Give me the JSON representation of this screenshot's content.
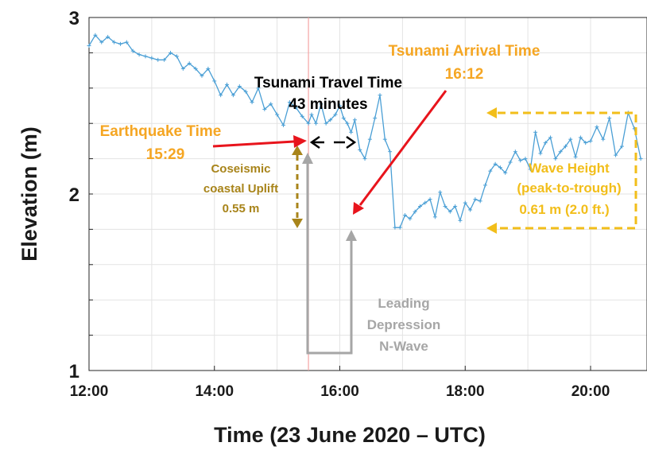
{
  "chart_data": {
    "type": "line",
    "title": "",
    "xlabel": "Time (23 June 2020 – UTC)",
    "ylabel": "Elevation (m)",
    "x_unit": "hours UTC",
    "xlim": [
      12.0,
      20.9
    ],
    "ylim": [
      1.0,
      3.0
    ],
    "grid": true,
    "x_ticks": [
      {
        "value": 12,
        "label": "12:00"
      },
      {
        "value": 14,
        "label": "14:00"
      },
      {
        "value": 16,
        "label": "16:00"
      },
      {
        "value": 18,
        "label": "18:00"
      },
      {
        "value": 20,
        "label": "20:00"
      }
    ],
    "y_ticks": [
      {
        "value": 1.0,
        "label": "1"
      },
      {
        "value": 1.2,
        "label": ""
      },
      {
        "value": 1.4,
        "label": ""
      },
      {
        "value": 1.6,
        "label": ""
      },
      {
        "value": 1.8,
        "label": ""
      },
      {
        "value": 2.0,
        "label": "2"
      },
      {
        "value": 2.2,
        "label": ""
      },
      {
        "value": 2.4,
        "label": ""
      },
      {
        "value": 2.6,
        "label": ""
      },
      {
        "value": 2.8,
        "label": ""
      },
      {
        "value": 3.0,
        "label": "3"
      }
    ],
    "series": [
      {
        "color": "#4a9fd5",
        "marker": "plus",
        "points": [
          [
            12.0,
            2.84
          ],
          [
            12.1,
            2.9
          ],
          [
            12.2,
            2.86
          ],
          [
            12.3,
            2.89
          ],
          [
            12.4,
            2.86
          ],
          [
            12.5,
            2.85
          ],
          [
            12.6,
            2.86
          ],
          [
            12.7,
            2.81
          ],
          [
            12.8,
            2.79
          ],
          [
            12.9,
            2.78
          ],
          [
            13.0,
            2.77
          ],
          [
            13.1,
            2.76
          ],
          [
            13.2,
            2.76
          ],
          [
            13.3,
            2.8
          ],
          [
            13.4,
            2.78
          ],
          [
            13.5,
            2.71
          ],
          [
            13.6,
            2.74
          ],
          [
            13.7,
            2.71
          ],
          [
            13.8,
            2.67
          ],
          [
            13.9,
            2.71
          ],
          [
            14.0,
            2.64
          ],
          [
            14.1,
            2.56
          ],
          [
            14.2,
            2.62
          ],
          [
            14.3,
            2.56
          ],
          [
            14.4,
            2.61
          ],
          [
            14.5,
            2.58
          ],
          [
            14.6,
            2.52
          ],
          [
            14.7,
            2.6
          ],
          [
            14.8,
            2.48
          ],
          [
            14.9,
            2.51
          ],
          [
            15.0,
            2.45
          ],
          [
            15.1,
            2.39
          ],
          [
            15.2,
            2.52
          ],
          [
            15.3,
            2.49
          ],
          [
            15.4,
            2.44
          ],
          [
            15.5,
            2.4
          ],
          [
            15.55,
            2.45
          ],
          [
            15.62,
            2.4
          ],
          [
            15.7,
            2.51
          ],
          [
            15.78,
            2.4
          ],
          [
            15.85,
            2.42
          ],
          [
            15.93,
            2.45
          ],
          [
            16.0,
            2.5
          ],
          [
            16.06,
            2.43
          ],
          [
            16.12,
            2.4
          ],
          [
            16.18,
            2.35
          ],
          [
            16.24,
            2.42
          ],
          [
            16.32,
            2.25
          ],
          [
            16.4,
            2.2
          ],
          [
            16.48,
            2.31
          ],
          [
            16.56,
            2.43
          ],
          [
            16.64,
            2.56
          ],
          [
            16.72,
            2.31
          ],
          [
            16.8,
            2.24
          ],
          [
            16.88,
            1.81
          ],
          [
            16.96,
            1.81
          ],
          [
            17.04,
            1.88
          ],
          [
            17.12,
            1.86
          ],
          [
            17.2,
            1.9
          ],
          [
            17.28,
            1.93
          ],
          [
            17.36,
            1.95
          ],
          [
            17.44,
            1.97
          ],
          [
            17.52,
            1.87
          ],
          [
            17.6,
            2.01
          ],
          [
            17.68,
            1.93
          ],
          [
            17.76,
            1.9
          ],
          [
            17.84,
            1.93
          ],
          [
            17.92,
            1.85
          ],
          [
            18.0,
            1.95
          ],
          [
            18.08,
            1.91
          ],
          [
            18.16,
            1.97
          ],
          [
            18.24,
            1.96
          ],
          [
            18.32,
            2.05
          ],
          [
            18.4,
            2.13
          ],
          [
            18.48,
            2.17
          ],
          [
            18.56,
            2.15
          ],
          [
            18.64,
            2.12
          ],
          [
            18.72,
            2.18
          ],
          [
            18.8,
            2.24
          ],
          [
            18.88,
            2.19
          ],
          [
            18.96,
            2.2
          ],
          [
            19.04,
            2.14
          ],
          [
            19.12,
            2.35
          ],
          [
            19.2,
            2.23
          ],
          [
            19.28,
            2.29
          ],
          [
            19.36,
            2.32
          ],
          [
            19.44,
            2.2
          ],
          [
            19.52,
            2.24
          ],
          [
            19.6,
            2.27
          ],
          [
            19.68,
            2.31
          ],
          [
            19.76,
            2.21
          ],
          [
            19.84,
            2.32
          ],
          [
            19.92,
            2.29
          ],
          [
            20.0,
            2.3
          ],
          [
            20.1,
            2.38
          ],
          [
            20.2,
            2.31
          ],
          [
            20.3,
            2.43
          ],
          [
            20.4,
            2.22
          ],
          [
            20.5,
            2.27
          ],
          [
            20.6,
            2.46
          ],
          [
            20.7,
            2.37
          ],
          [
            20.8,
            2.2
          ]
        ]
      }
    ],
    "annotations": {
      "earthquake_time": {
        "label_line1": "Earthquake Time",
        "label_line2": "15:29",
        "color": "#f5a623"
      },
      "travel_time": {
        "label_line1": "Tsunami Travel Time",
        "label_line2": "43 minutes",
        "color": "#000000"
      },
      "arrival_time": {
        "label_line1": "Tsunami Arrival Time",
        "label_line2": "16:12",
        "color": "#f5a623"
      },
      "uplift": {
        "label_line1": "Coseismic",
        "label_line2": "coastal Uplift",
        "label_line3": "0.55 m",
        "color": "#a8841a"
      },
      "wave_height": {
        "label_line1": "Wave Height",
        "label_line2": "(peak-to-trough)",
        "label_line3": "0.61 m (2.0 ft.)",
        "color": "#f2be1a"
      },
      "leading_depression": {
        "label_line1": "Leading",
        "label_line2": "Depression",
        "label_line3": "N-Wave",
        "color": "#a6a6a6"
      },
      "arrow_color": "#e8141c",
      "earthquake_line_color": "#f4a3a3"
    }
  }
}
